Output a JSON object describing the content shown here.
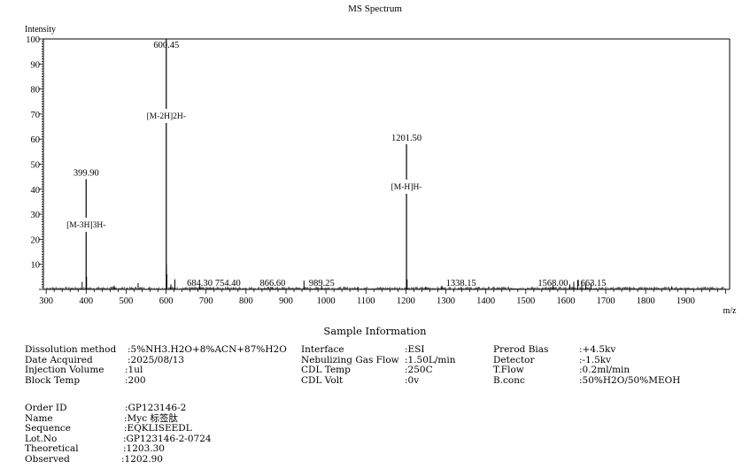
{
  "chart_data": {
    "type": "bar",
    "title": "MS Spectrum",
    "xlabel": "m/z",
    "ylabel": "Intensity",
    "xlim": [
      293,
      2010
    ],
    "ylim": [
      0,
      100
    ],
    "x_ticks": [
      300,
      400,
      500,
      600,
      700,
      800,
      900,
      1000,
      1100,
      1200,
      1300,
      1400,
      1500,
      1600,
      1700,
      1800,
      1900
    ],
    "y_ticks": [
      10,
      20,
      30,
      40,
      50,
      60,
      70,
      80,
      90,
      100
    ],
    "grid": false,
    "legend": null,
    "peaks": [
      {
        "mz": 399.9,
        "intensity": 44,
        "label": "399.90",
        "annotation": "[M-3H]3H-"
      },
      {
        "mz": 600.45,
        "intensity": 100,
        "label": "600.45",
        "annotation": "[M-2H]2H-"
      },
      {
        "mz": 684.3,
        "intensity": 1.5,
        "label": "684.30",
        "annotation": ""
      },
      {
        "mz": 754.4,
        "intensity": 1.0,
        "label": "754.40",
        "annotation": ""
      },
      {
        "mz": 866.6,
        "intensity": 1.0,
        "label": "866.60",
        "annotation": ""
      },
      {
        "mz": 989.25,
        "intensity": 1.5,
        "label": "989.25",
        "annotation": ""
      },
      {
        "mz": 1201.5,
        "intensity": 58,
        "label": "1201.50",
        "annotation": "[M-H]H-"
      },
      {
        "mz": 1338.15,
        "intensity": 1.0,
        "label": "1338.15",
        "annotation": ""
      },
      {
        "mz": 1568.0,
        "intensity": 1.5,
        "label": "1568.00",
        "annotation": ""
      },
      {
        "mz": 1663.15,
        "intensity": 2.5,
        "label": "1663.15",
        "annotation": ""
      }
    ],
    "minor_peaks": [
      {
        "mz": 390,
        "intensity": 3
      },
      {
        "mz": 401,
        "intensity": 5
      },
      {
        "mz": 470,
        "intensity": 1.5
      },
      {
        "mz": 530,
        "intensity": 2.5
      },
      {
        "mz": 601,
        "intensity": 10
      },
      {
        "mz": 602,
        "intensity": 6
      },
      {
        "mz": 612,
        "intensity": 2
      },
      {
        "mz": 622,
        "intensity": 4
      },
      {
        "mz": 945,
        "intensity": 3.5
      },
      {
        "mz": 1080,
        "intensity": 1
      },
      {
        "mz": 1203,
        "intensity": 4
      },
      {
        "mz": 1250,
        "intensity": 1
      },
      {
        "mz": 1290,
        "intensity": 1.5
      },
      {
        "mz": 1610,
        "intensity": 2
      },
      {
        "mz": 1620,
        "intensity": 3
      },
      {
        "mz": 1630,
        "intensity": 3.5
      },
      {
        "mz": 1640,
        "intensity": 3
      },
      {
        "mz": 1650,
        "intensity": 2
      },
      {
        "mz": 1760,
        "intensity": 1
      },
      {
        "mz": 1865,
        "intensity": 1.2
      }
    ]
  },
  "header": {
    "title": "MS Spectrum",
    "y_axis_label": "Intensity",
    "x_axis_label": "m/z"
  },
  "sample_info": {
    "title": "Sample Information",
    "col1": [
      {
        "key": "Dissolution method",
        "value": ":5%NH3.H2O+8%ACN+87%H2O"
      },
      {
        "key": "Date Acquired",
        "value": ":2025/08/13"
      },
      {
        "key": "Injection Volume",
        "value": ":1ul"
      },
      {
        "key": "Block Temp",
        "value": ":200"
      }
    ],
    "col2": [
      {
        "key": "Interface",
        "value": ":ESI"
      },
      {
        "key": "Nebulizing Gas Flow",
        "value": ":1.50L/min"
      },
      {
        "key": "CDL Temp",
        "value": ":250C"
      },
      {
        "key": "CDL Volt",
        "value": ":0v"
      }
    ],
    "col3": [
      {
        "key": "Prerod Bias",
        "value": ":+4.5kv"
      },
      {
        "key": "Detector",
        "value": ":-1.5kv"
      },
      {
        "key": "T.Flow",
        "value": ":0.2ml/min"
      },
      {
        "key": "B.conc",
        "value": ":50%H2O/50%MEOH"
      }
    ]
  },
  "order_info": [
    {
      "key": "Order ID",
      "value": ":GP123146-2"
    },
    {
      "key": "Name",
      "value": ":Myc 标签肽"
    },
    {
      "key": "Sequence",
      "value": ":EQKLISEEDL"
    },
    {
      "key": "Lot.No",
      "value": ":GP123146-2-0724"
    },
    {
      "key": "Theoretical",
      "value": ":1203.30"
    },
    {
      "key": "Observed",
      "value": ":1202.90"
    }
  ]
}
